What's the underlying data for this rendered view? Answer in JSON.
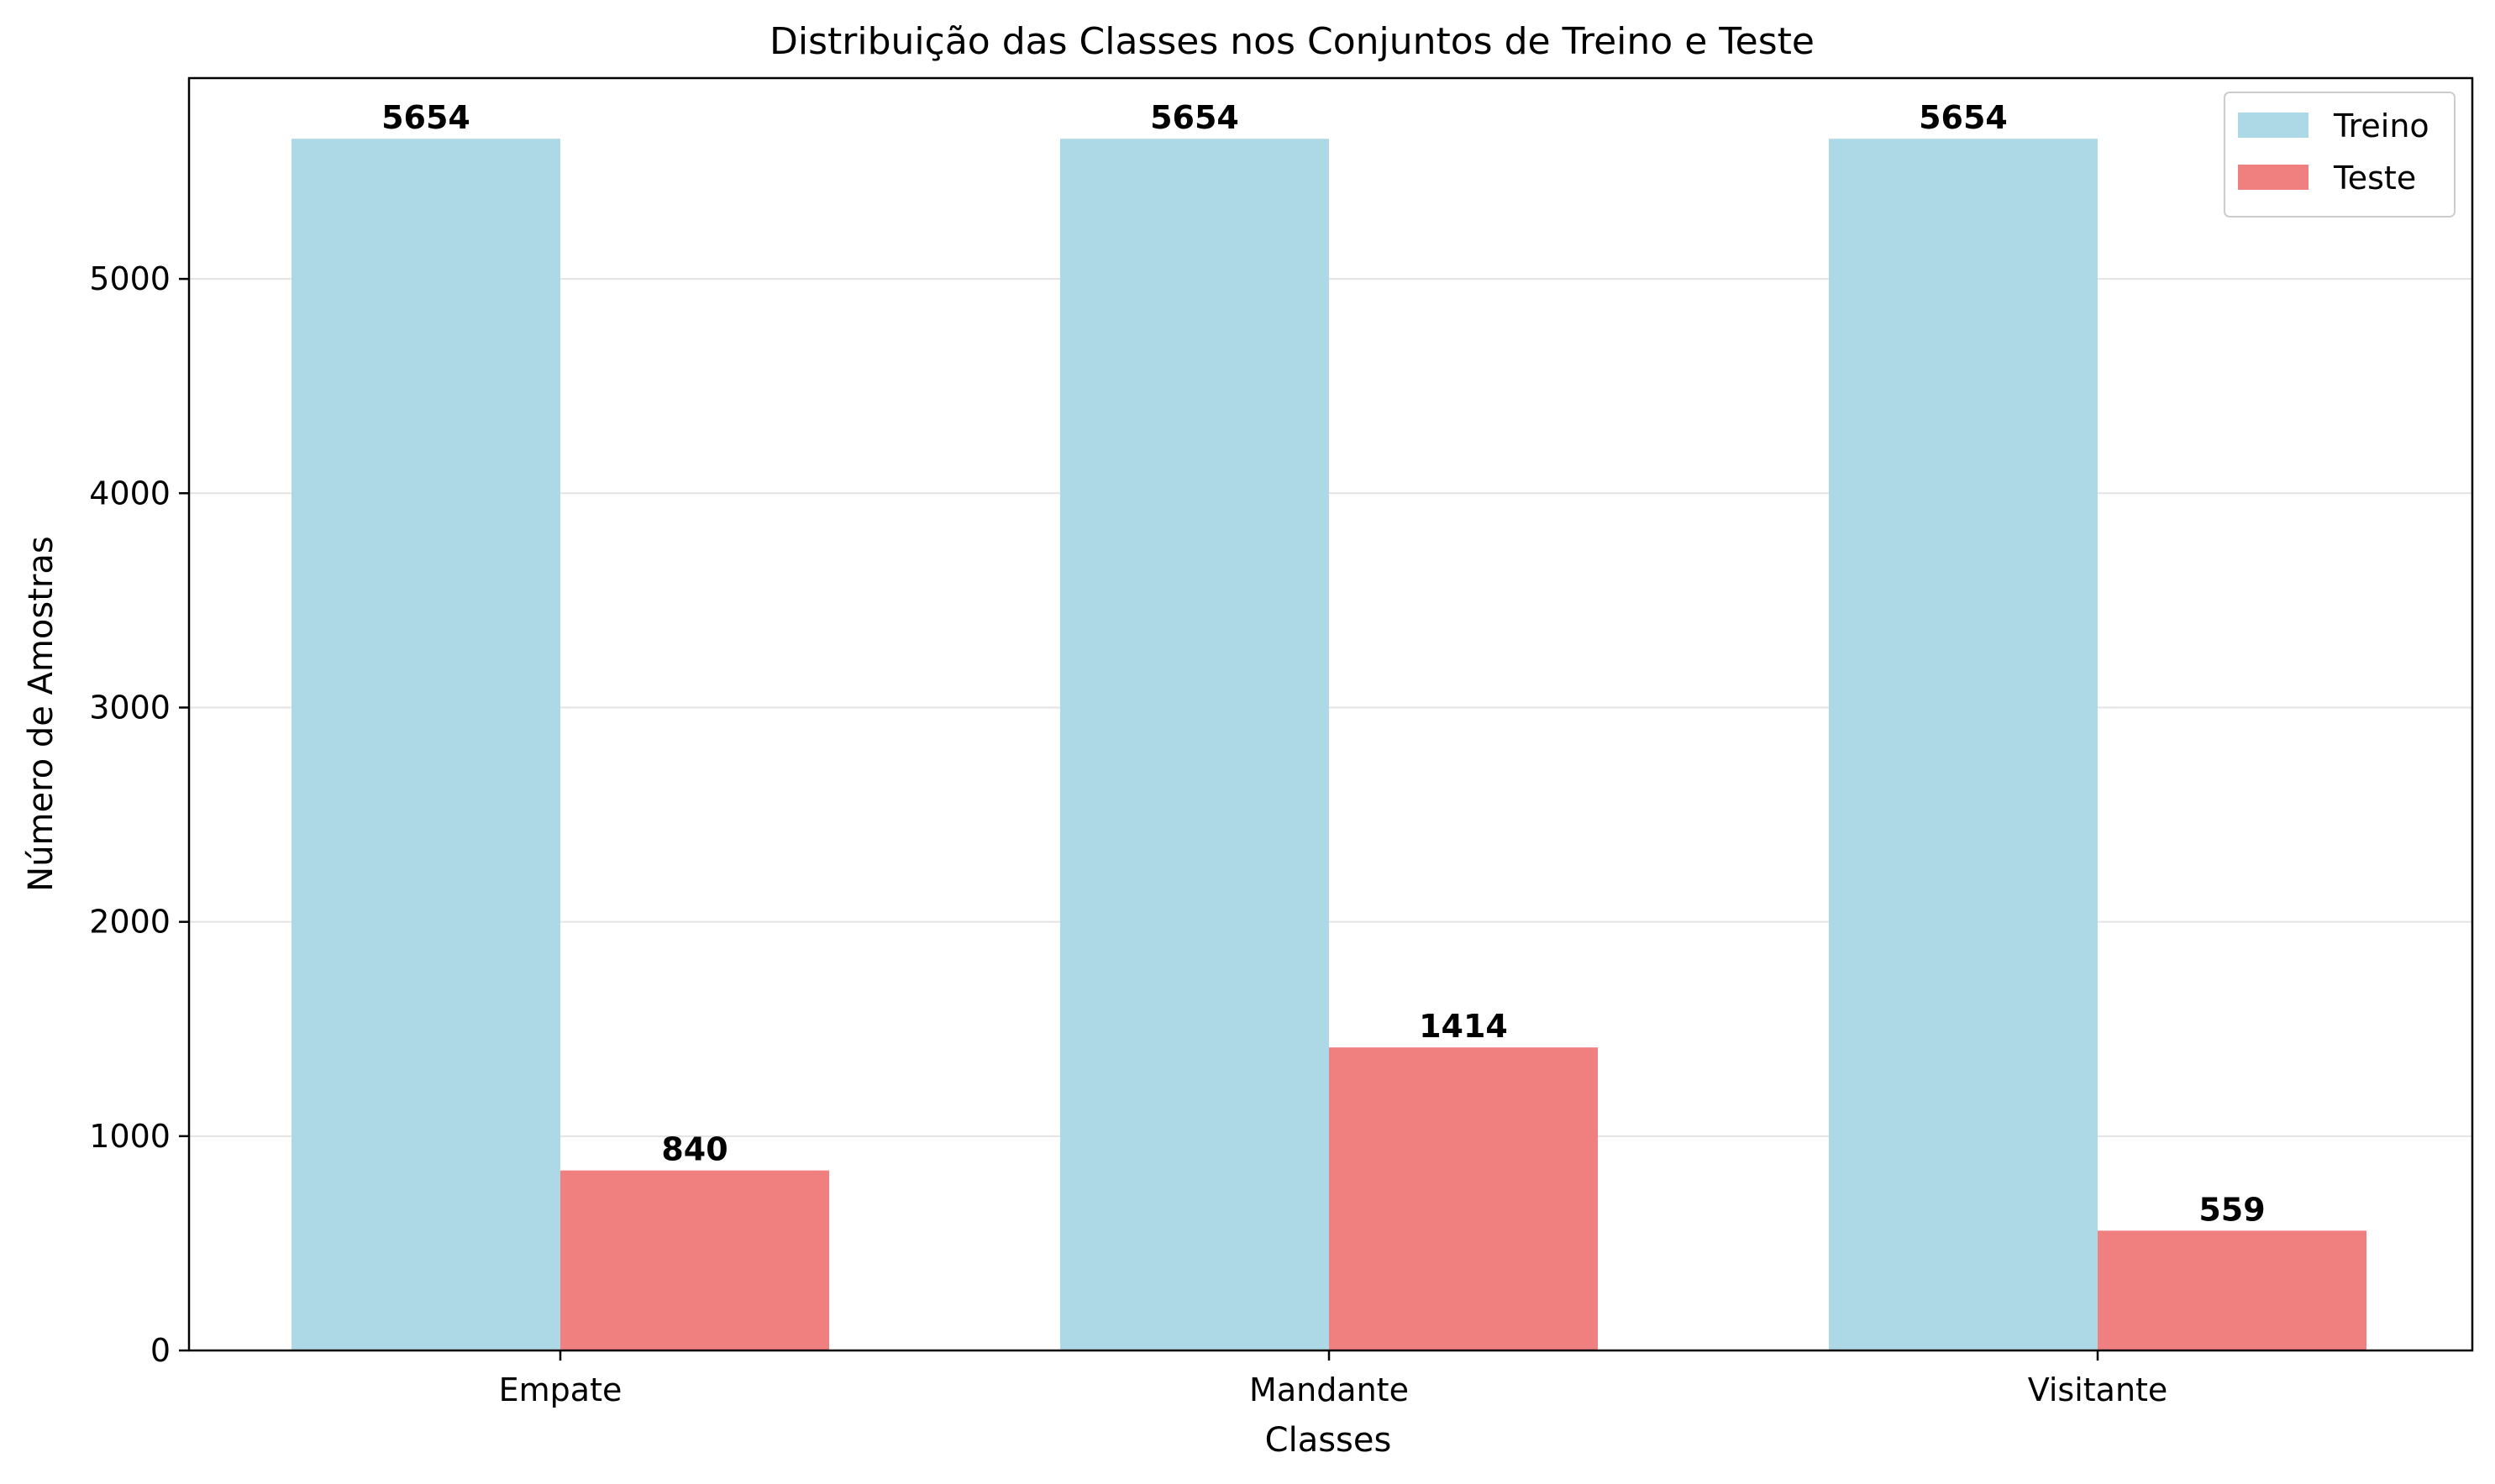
{
  "chart_data": {
    "type": "bar",
    "title": "Distribuição das Classes nos Conjuntos de Treino e Teste",
    "xlabel": "Classes",
    "ylabel": "Número de Amostras",
    "categories": [
      "Empate",
      "Mandante",
      "Visitante"
    ],
    "series": [
      {
        "name": "Treino",
        "values": [
          5654,
          5654,
          5654
        ],
        "color": "#add8e6"
      },
      {
        "name": "Teste",
        "values": [
          840,
          1414,
          559
        ],
        "color": "#f08080"
      }
    ],
    "ylim": [
      0,
      5937
    ],
    "yticks": [
      0,
      1000,
      2000,
      3000,
      4000,
      5000
    ],
    "grid": true,
    "legend": "top-right"
  }
}
